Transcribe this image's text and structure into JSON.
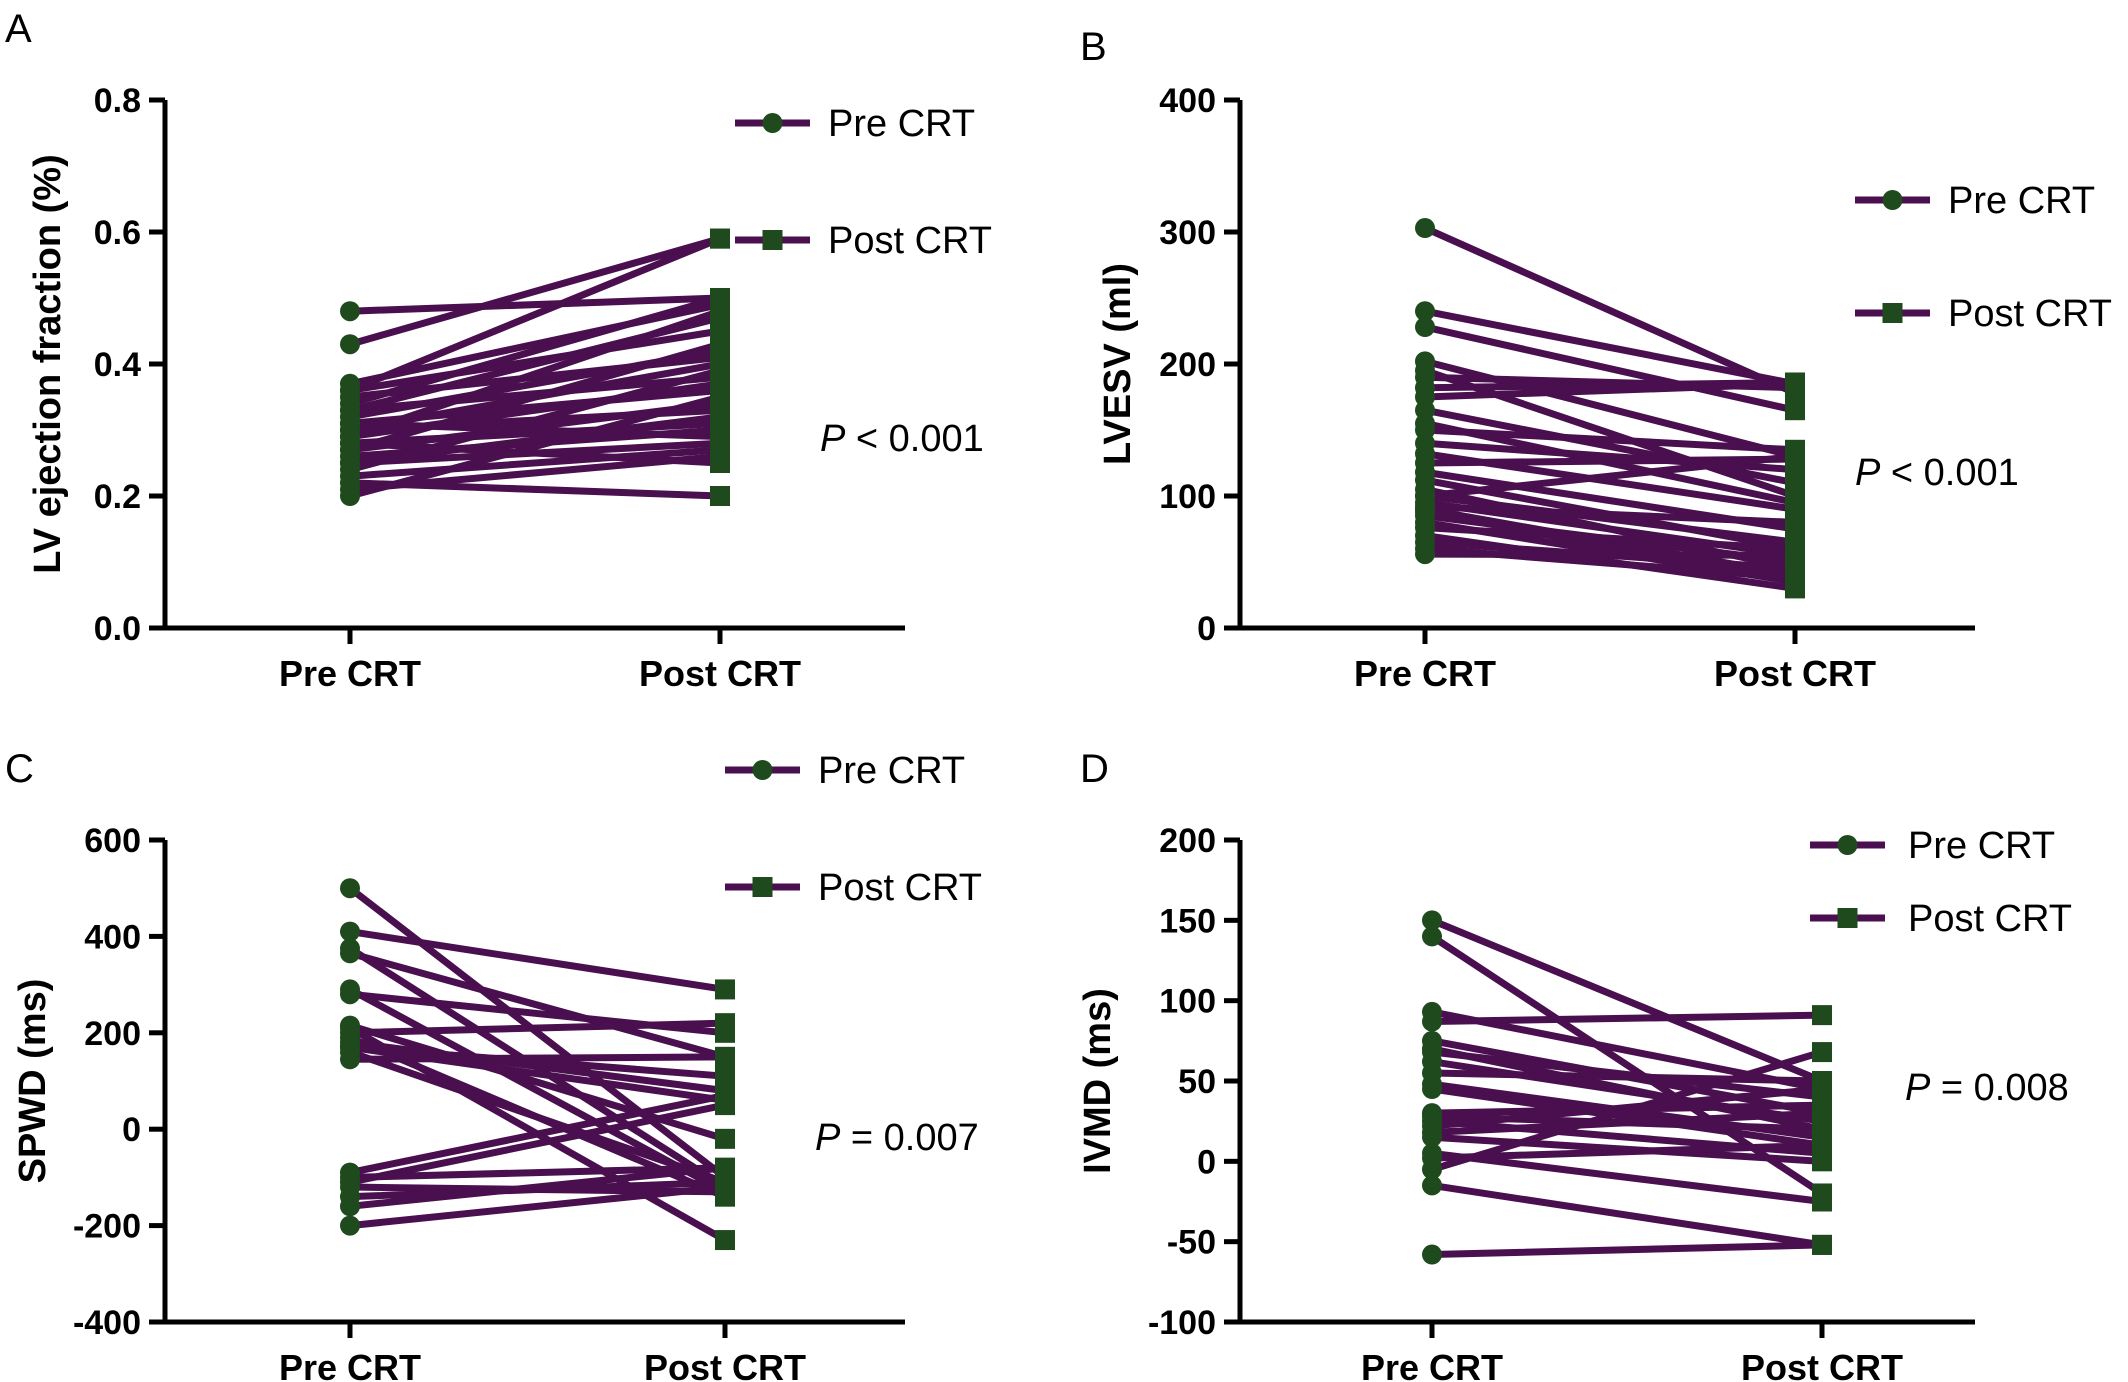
{
  "colors": {
    "line": "#4a0f4e",
    "marker": "#1e4a1e",
    "axis": "#000000"
  },
  "chart_data": [
    {
      "panel": "A",
      "type": "line",
      "categories": [
        "Pre CRT",
        "Post CRT"
      ],
      "ylabel": "LV ejection fraction (%)",
      "ylim": [
        0.0,
        0.8
      ],
      "yticks": [
        0.0,
        0.2,
        0.4,
        0.6,
        0.8
      ],
      "tick_labels": [
        "0.0",
        "0.2",
        "0.4",
        "0.6",
        "0.8"
      ],
      "legend": [
        "Pre CRT",
        "Post CRT"
      ],
      "legend_position": "top-right",
      "p_label": "P",
      "p_value": "< 0.001",
      "pairs": [
        [
          0.48,
          0.5
        ],
        [
          0.43,
          0.59
        ],
        [
          0.37,
          0.49
        ],
        [
          0.36,
          0.45
        ],
        [
          0.35,
          0.41
        ],
        [
          0.34,
          0.5
        ],
        [
          0.33,
          0.38
        ],
        [
          0.32,
          0.42
        ],
        [
          0.31,
          0.36
        ],
        [
          0.31,
          0.29
        ],
        [
          0.3,
          0.4
        ],
        [
          0.3,
          0.33
        ],
        [
          0.29,
          0.48
        ],
        [
          0.29,
          0.37
        ],
        [
          0.28,
          0.31
        ],
        [
          0.28,
          0.25
        ],
        [
          0.27,
          0.34
        ],
        [
          0.26,
          0.3
        ],
        [
          0.25,
          0.28
        ],
        [
          0.24,
          0.39
        ],
        [
          0.23,
          0.27
        ],
        [
          0.22,
          0.2
        ],
        [
          0.21,
          0.26
        ],
        [
          0.2,
          0.35
        ],
        [
          0.36,
          0.59
        ],
        [
          0.27,
          0.43
        ],
        [
          0.33,
          0.47
        ],
        [
          0.25,
          0.32
        ]
      ]
    },
    {
      "panel": "B",
      "type": "line",
      "categories": [
        "Pre CRT",
        "Post CRT"
      ],
      "ylabel": "LVESV (ml)",
      "ylim": [
        0,
        400
      ],
      "yticks": [
        0,
        100,
        200,
        300,
        400
      ],
      "tick_labels": [
        "0",
        "100",
        "200",
        "300",
        "400"
      ],
      "legend": [
        "Pre CRT",
        "Post CRT"
      ],
      "legend_position": "right",
      "p_label": "P",
      "p_value": "< 0.001",
      "pairs": [
        [
          303,
          178
        ],
        [
          240,
          185
        ],
        [
          228,
          165
        ],
        [
          202,
          130
        ],
        [
          195,
          100
        ],
        [
          190,
          182
        ],
        [
          182,
          186
        ],
        [
          175,
          185
        ],
        [
          165,
          110
        ],
        [
          155,
          95
        ],
        [
          150,
          135
        ],
        [
          140,
          120
        ],
        [
          132,
          90
        ],
        [
          125,
          128
        ],
        [
          118,
          75
        ],
        [
          112,
          60
        ],
        [
          105,
          45
        ],
        [
          100,
          130
        ],
        [
          95,
          55
        ],
        [
          90,
          40
        ],
        [
          85,
          50
        ],
        [
          80,
          35
        ],
        [
          76,
          60
        ],
        [
          70,
          30
        ],
        [
          65,
          45
        ],
        [
          60,
          38
        ],
        [
          56,
          55
        ],
        [
          100,
          65
        ],
        [
          92,
          80
        ],
        [
          88,
          35
        ]
      ]
    },
    {
      "panel": "C",
      "type": "line",
      "categories": [
        "Pre CRT",
        "Post CRT"
      ],
      "ylabel": "SPWD (ms)",
      "ylim": [
        -400,
        600
      ],
      "yticks": [
        -400,
        -200,
        0,
        200,
        400,
        600
      ],
      "tick_labels": [
        "-400",
        "-200",
        "0",
        "200",
        "400",
        "600"
      ],
      "legend": [
        "Pre CRT",
        "Post CRT"
      ],
      "legend_position": "top-right",
      "p_label": "P",
      "p_value": "= 0.007",
      "pairs": [
        [
          500,
          -100
        ],
        [
          410,
          290
        ],
        [
          375,
          -120
        ],
        [
          365,
          150
        ],
        [
          290,
          -130
        ],
        [
          280,
          200
        ],
        [
          215,
          -20
        ],
        [
          200,
          220
        ],
        [
          190,
          -140
        ],
        [
          180,
          80
        ],
        [
          170,
          60
        ],
        [
          160,
          -110
        ],
        [
          145,
          150
        ],
        [
          -90,
          70
        ],
        [
          -100,
          -80
        ],
        [
          -110,
          50
        ],
        [
          -120,
          -130
        ],
        [
          -140,
          -110
        ],
        [
          -160,
          -80
        ],
        [
          -200,
          -120
        ],
        [
          210,
          -230
        ],
        [
          170,
          110
        ]
      ]
    },
    {
      "panel": "D",
      "type": "line",
      "categories": [
        "Pre CRT",
        "Post CRT"
      ],
      "ylabel": "IVMD (ms)",
      "ylim": [
        -100,
        200
      ],
      "yticks": [
        -100,
        -50,
        0,
        50,
        100,
        150,
        200
      ],
      "tick_labels": [
        "-100",
        "-50",
        "0",
        "50",
        "100",
        "150",
        "200"
      ],
      "legend": [
        "Pre CRT",
        "Post CRT"
      ],
      "legend_position": "top-right",
      "p_label": "P",
      "p_value": "= 0.008",
      "pairs": [
        [
          150,
          50
        ],
        [
          140,
          -20
        ],
        [
          93,
          45
        ],
        [
          87,
          91
        ],
        [
          75,
          30
        ],
        [
          68,
          40
        ],
        [
          62,
          25
        ],
        [
          55,
          50
        ],
        [
          48,
          15
        ],
        [
          30,
          35
        ],
        [
          28,
          20
        ],
        [
          25,
          5
        ],
        [
          22,
          45
        ],
        [
          15,
          0
        ],
        [
          5,
          -25
        ],
        [
          2,
          10
        ],
        [
          -5,
          68
        ],
        [
          -15,
          -52
        ],
        [
          -58,
          -52
        ],
        [
          70,
          20
        ],
        [
          45,
          10
        ],
        [
          18,
          30
        ]
      ]
    }
  ]
}
